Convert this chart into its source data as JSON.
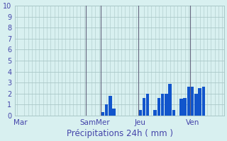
{
  "title": "",
  "xlabel": "Précipitations 24h ( mm )",
  "ylabel": "",
  "bg_color": "#d8f0f0",
  "bar_color": "#1155cc",
  "grid_color": "#aac8c8",
  "axis_label_color": "#4444aa",
  "tick_color": "#4444aa",
  "ylim": [
    0,
    10
  ],
  "yticks": [
    0,
    1,
    2,
    3,
    4,
    5,
    6,
    7,
    8,
    9,
    10
  ],
  "num_bars": 56,
  "day_labels": [
    "Mar",
    "Sam",
    "Mer",
    "Jeu",
    "Ven"
  ],
  "day_positions": [
    1,
    19,
    23,
    33,
    47
  ],
  "vline_positions": [
    19,
    23,
    33,
    47
  ],
  "vline_color": "#666680",
  "bar_values": [
    0,
    0,
    0,
    0,
    0,
    0,
    0,
    0,
    0,
    0,
    0,
    0,
    0,
    0,
    0,
    0,
    0,
    0,
    0,
    0,
    0,
    0,
    0,
    0.3,
    1.0,
    1.8,
    0.6,
    0,
    0,
    0,
    0,
    0,
    0,
    0.5,
    1.6,
    2.0,
    0,
    0.5,
    1.6,
    2.0,
    2.0,
    2.9,
    0.5,
    0,
    1.5,
    1.6,
    2.6,
    2.6,
    2.0,
    2.5,
    2.6,
    0,
    0,
    0,
    0,
    0
  ]
}
